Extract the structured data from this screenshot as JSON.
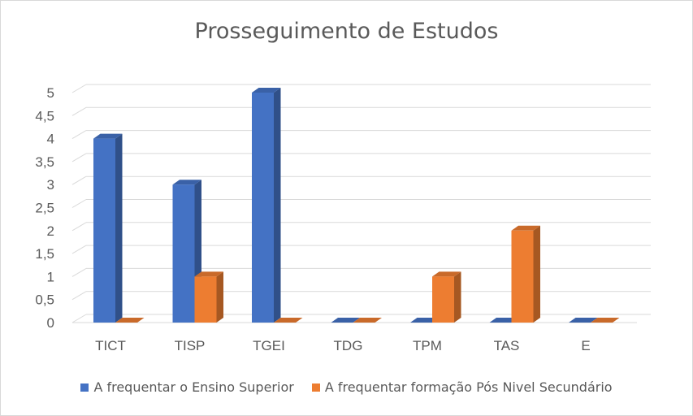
{
  "chart_data": {
    "type": "bar",
    "title": "Prosseguimento  de Estudos",
    "categories": [
      "TICT",
      "TISP",
      "TGEI",
      "TDG",
      "TPM",
      "TAS",
      "E"
    ],
    "series": [
      {
        "name": "A frequentar o Ensino Superior",
        "values": [
          4,
          3,
          5,
          0,
          0,
          0,
          0
        ],
        "color": "#4472c4"
      },
      {
        "name": "A frequentar formação Pós Nivel Secundário",
        "values": [
          0,
          1,
          0,
          0,
          1,
          2,
          0
        ],
        "color": "#ed7d31"
      }
    ],
    "yticks": [
      "0",
      "0,5",
      "1",
      "1,5",
      "2",
      "2,5",
      "3",
      "3,5",
      "4",
      "4,5",
      "5"
    ],
    "ylim": [
      0,
      5
    ],
    "grid": true,
    "legend": "bottom",
    "three_d": true
  }
}
